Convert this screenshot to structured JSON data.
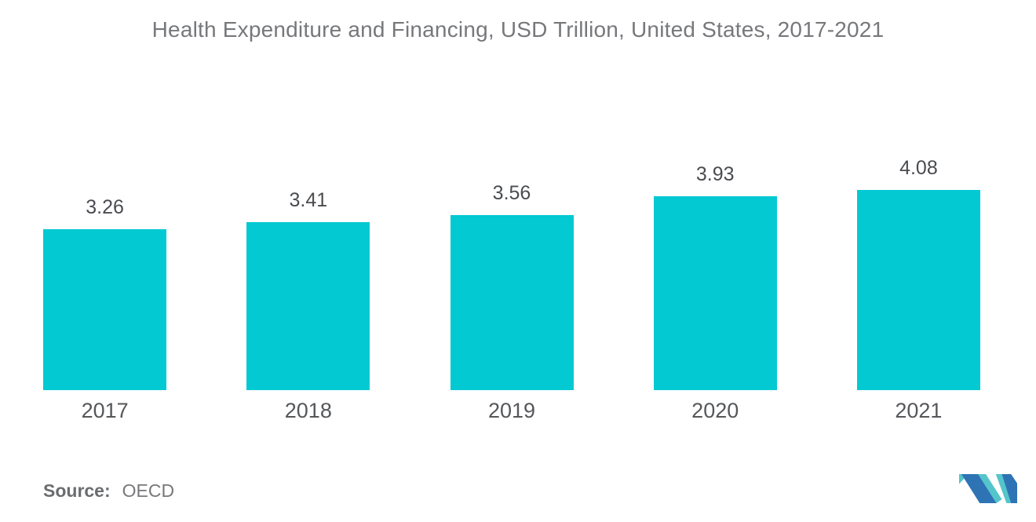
{
  "title": "Health Expenditure and Financing, USD Trillion, United States, 2017-2021",
  "source": {
    "label": "Source:",
    "value": "OECD"
  },
  "colors": {
    "bar": "#03C9D2",
    "title_text": "#77787B",
    "value_label_text": "#4A4C4F",
    "year_label_text": "#55575A",
    "source_text": "#707174",
    "logo_blue": "#2E74B5",
    "logo_teal": "#54C5CA"
  },
  "chart_data": {
    "type": "bar",
    "title": "Health Expenditure and Financing, USD Trillion, United States, 2017-2021",
    "categories": [
      "2017",
      "2018",
      "2019",
      "2020",
      "2021"
    ],
    "values": [
      3.26,
      3.41,
      3.56,
      3.93,
      4.08
    ],
    "value_labels": [
      "3.26",
      "3.41",
      "3.56",
      "3.93",
      "4.08"
    ],
    "xlabel": "",
    "ylabel": "",
    "ylim": [
      0,
      4.08
    ],
    "grid": false,
    "legend": false,
    "axes_visible": false,
    "bar_color": "#03C9D2",
    "value_labels_position": "above-bars"
  }
}
